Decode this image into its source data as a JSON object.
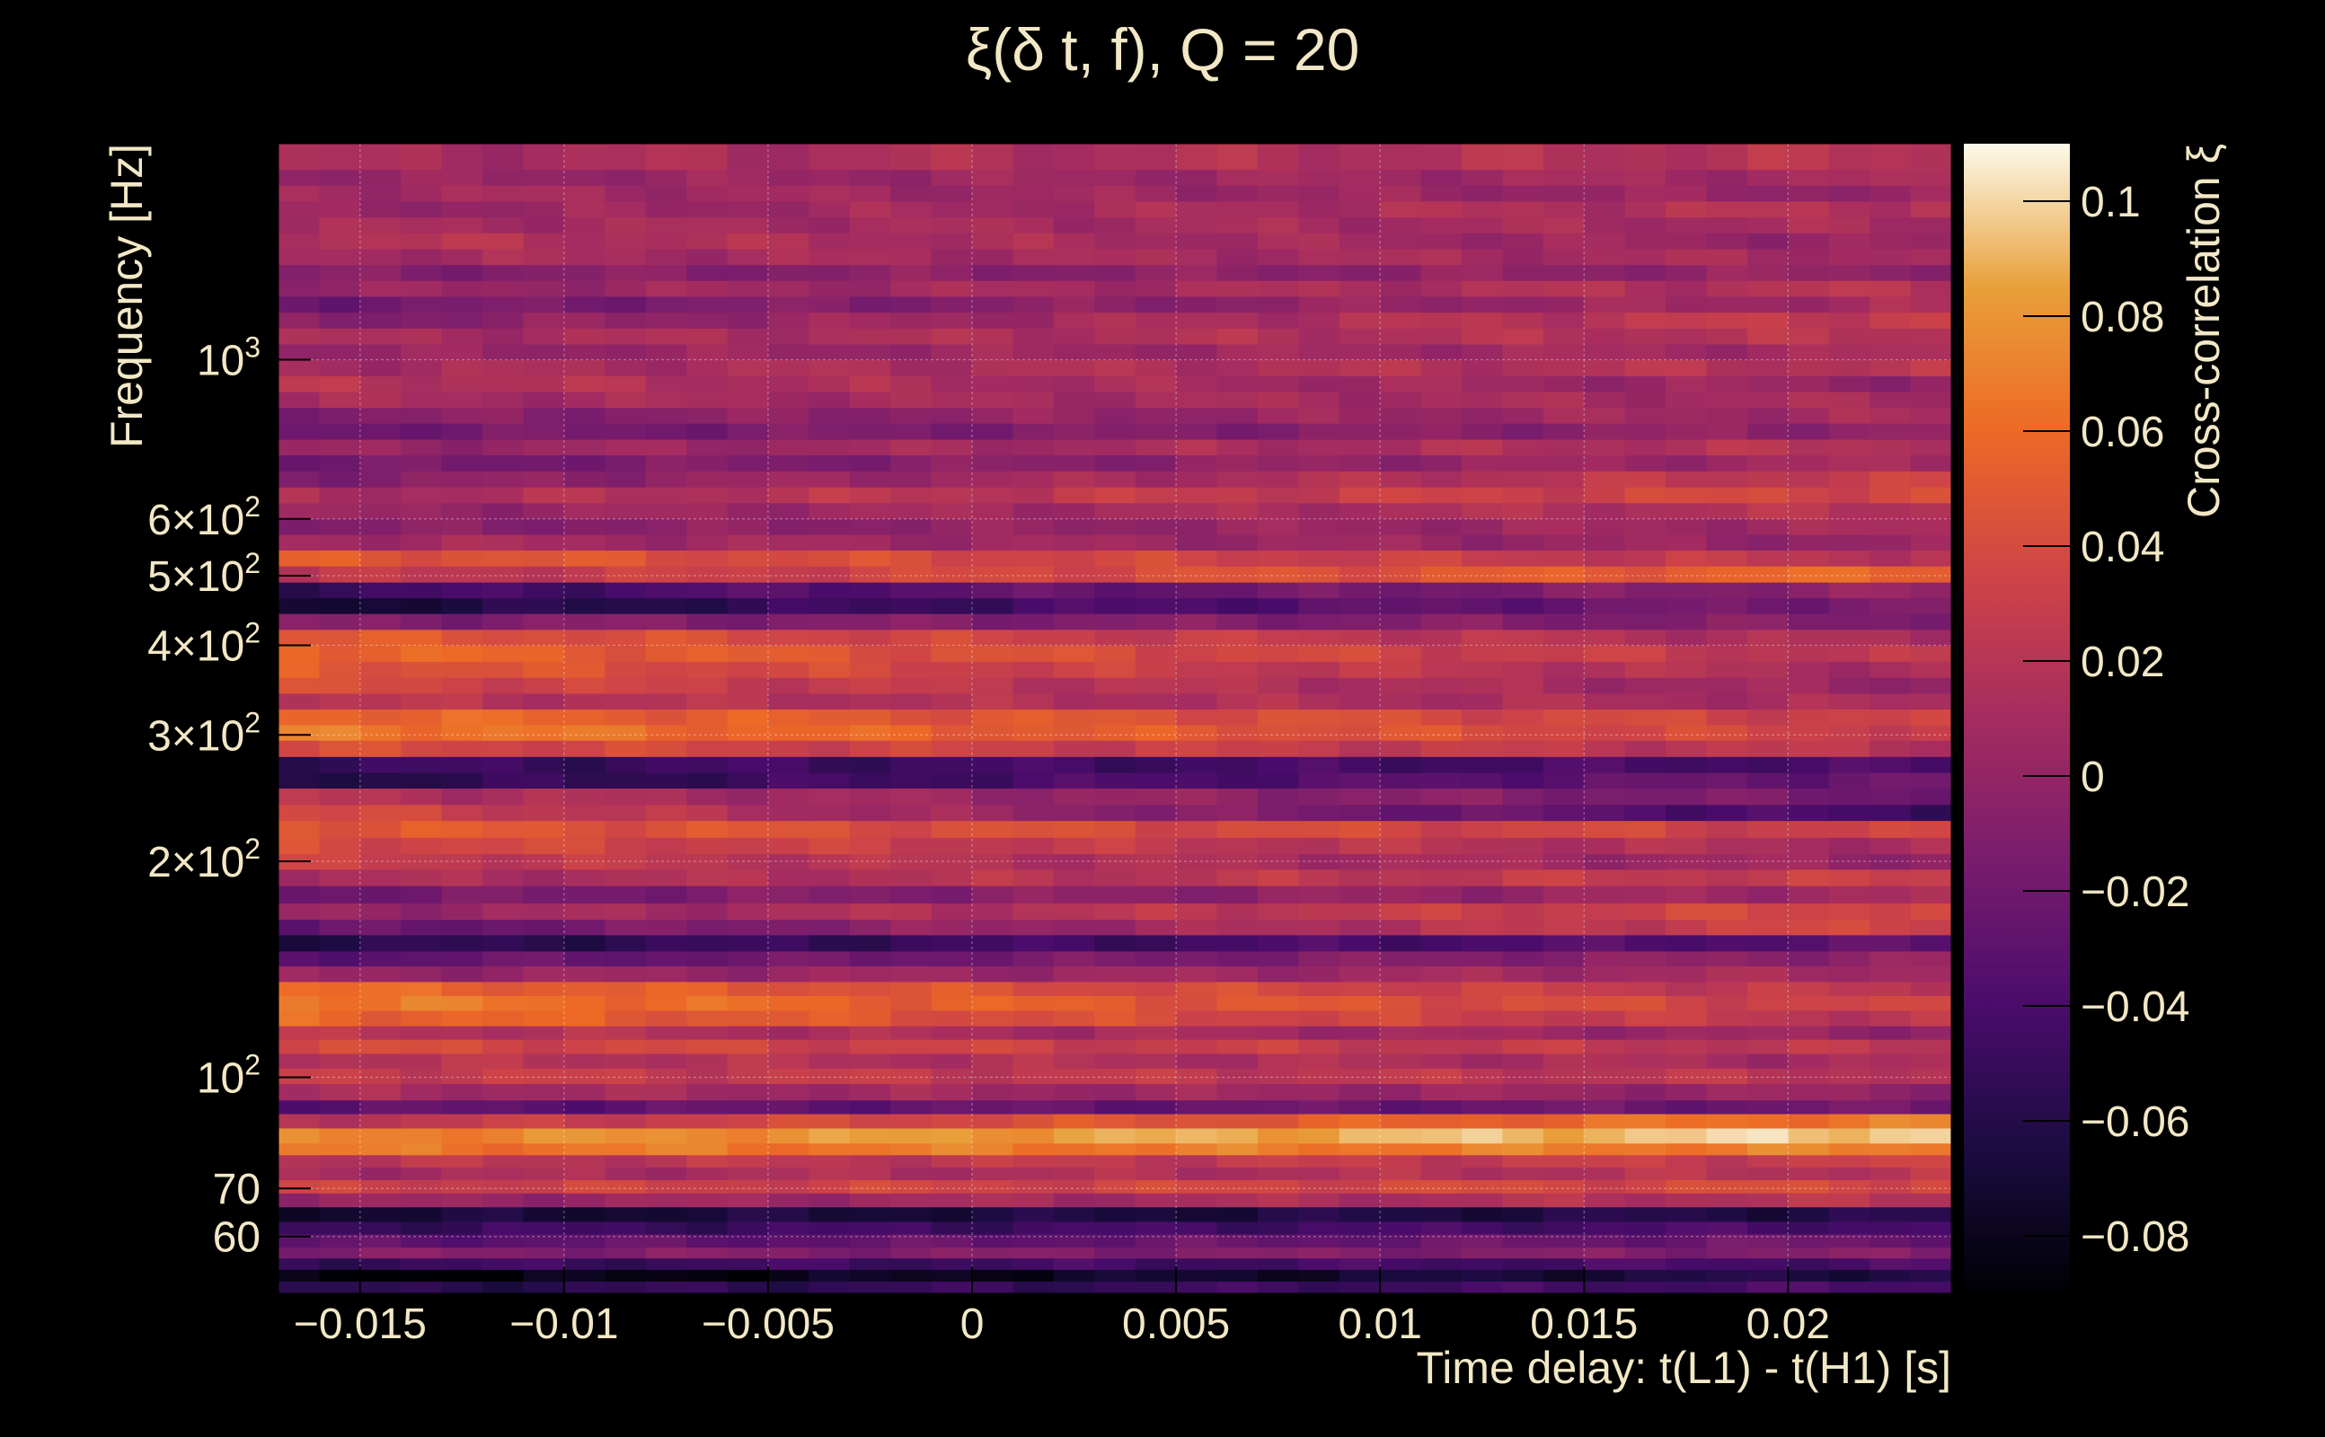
{
  "chart_data": {
    "type": "heatmap",
    "title": "ξ(δ t, f), Q = 20",
    "xlabel": "Time delay: t(L1) - t(H1) [s]",
    "ylabel": "Frequency [Hz]",
    "colorbar_label": "Cross-correlation ξ",
    "x_range": [
      -0.017,
      0.024
    ],
    "y_range": [
      50,
      2000
    ],
    "y_scale": "log",
    "z_range": [
      -0.09,
      0.11
    ],
    "grid": true,
    "colormap": "inferno",
    "x_ticks": [
      {
        "value": -0.015,
        "label": "−0.015"
      },
      {
        "value": -0.01,
        "label": "−0.01"
      },
      {
        "value": -0.005,
        "label": "−0.005"
      },
      {
        "value": 0,
        "label": "0"
      },
      {
        "value": 0.005,
        "label": "0.005"
      },
      {
        "value": 0.01,
        "label": "0.01"
      },
      {
        "value": 0.015,
        "label": "0.015"
      },
      {
        "value": 0.02,
        "label": "0.02"
      }
    ],
    "y_ticks": [
      {
        "value": 60,
        "base": "60",
        "exp": ""
      },
      {
        "value": 70,
        "base": "70",
        "exp": ""
      },
      {
        "value": 100,
        "base": "10",
        "exp": "2"
      },
      {
        "value": 200,
        "base": "2×10",
        "exp": "2"
      },
      {
        "value": 300,
        "base": "3×10",
        "exp": "2"
      },
      {
        "value": 400,
        "base": "4×10",
        "exp": "2"
      },
      {
        "value": 500,
        "base": "5×10",
        "exp": "2"
      },
      {
        "value": 600,
        "base": "6×10",
        "exp": "2"
      },
      {
        "value": 1000,
        "base": "10",
        "exp": "3"
      }
    ],
    "z_ticks": [
      {
        "value": 0.1,
        "label": "0.1"
      },
      {
        "value": 0.08,
        "label": "0.08"
      },
      {
        "value": 0.06,
        "label": "0.06"
      },
      {
        "value": 0.04,
        "label": "0.04"
      },
      {
        "value": 0.02,
        "label": "0.02"
      },
      {
        "value": 0,
        "label": "0"
      },
      {
        "value": -0.02,
        "label": "−0.02"
      },
      {
        "value": -0.04,
        "label": "−0.04"
      },
      {
        "value": -0.06,
        "label": "−0.06"
      },
      {
        "value": -0.08,
        "label": "−0.08"
      }
    ],
    "frequency_bands": [
      {
        "f_low": 50,
        "f_high": 52,
        "left": -0.06,
        "right": -0.04
      },
      {
        "f_low": 52,
        "f_high": 54,
        "left": -0.09,
        "right": -0.06
      },
      {
        "f_low": 54,
        "f_high": 56,
        "left": -0.05,
        "right": -0.04
      },
      {
        "f_low": 56,
        "f_high": 58,
        "left": -0.01,
        "right": -0.01
      },
      {
        "f_low": 58,
        "f_high": 60.5,
        "left": -0.03,
        "right": -0.02
      },
      {
        "f_low": 60.5,
        "f_high": 63,
        "left": -0.05,
        "right": -0.04
      },
      {
        "f_low": 63,
        "f_high": 66,
        "left": -0.07,
        "right": -0.06
      },
      {
        "f_low": 66,
        "f_high": 69,
        "left": 0.0,
        "right": 0.02
      },
      {
        "f_low": 69,
        "f_high": 72,
        "left": 0.03,
        "right": 0.04
      },
      {
        "f_low": 72,
        "f_high": 75,
        "left": 0.01,
        "right": 0.02
      },
      {
        "f_low": 75,
        "f_high": 78,
        "left": 0.02,
        "right": 0.03
      },
      {
        "f_low": 78,
        "f_high": 81,
        "left": 0.065,
        "right": 0.07
      },
      {
        "f_low": 81,
        "f_high": 85,
        "left": 0.07,
        "right": 0.1
      },
      {
        "f_low": 85,
        "f_high": 89,
        "left": 0.02,
        "right": 0.07
      },
      {
        "f_low": 89,
        "f_high": 93,
        "left": -0.03,
        "right": -0.02
      },
      {
        "f_low": 93,
        "f_high": 98,
        "left": 0.01,
        "right": 0.0
      },
      {
        "f_low": 98,
        "f_high": 103,
        "left": 0.03,
        "right": 0.02
      },
      {
        "f_low": 103,
        "f_high": 108,
        "left": 0.02,
        "right": 0.01
      },
      {
        "f_low": 108,
        "f_high": 113,
        "left": 0.04,
        "right": 0.02
      },
      {
        "f_low": 113,
        "f_high": 118,
        "left": 0.02,
        "right": 0.0
      },
      {
        "f_low": 118,
        "f_high": 124,
        "left": 0.06,
        "right": 0.02
      },
      {
        "f_low": 124,
        "f_high": 130,
        "left": 0.07,
        "right": 0.03
      },
      {
        "f_low": 130,
        "f_high": 136,
        "left": 0.06,
        "right": 0.02
      },
      {
        "f_low": 136,
        "f_high": 143,
        "left": 0.0,
        "right": 0.01
      },
      {
        "f_low": 143,
        "f_high": 150,
        "left": -0.03,
        "right": 0.0
      },
      {
        "f_low": 150,
        "f_high": 158,
        "left": -0.06,
        "right": -0.03
      },
      {
        "f_low": 158,
        "f_high": 166,
        "left": -0.03,
        "right": 0.04
      },
      {
        "f_low": 166,
        "f_high": 175,
        "left": 0.0,
        "right": 0.04
      },
      {
        "f_low": 175,
        "f_high": 185,
        "left": -0.02,
        "right": 0.01
      },
      {
        "f_low": 185,
        "f_high": 195,
        "left": 0.01,
        "right": 0.03
      },
      {
        "f_low": 195,
        "f_high": 205,
        "left": 0.03,
        "right": 0.0
      },
      {
        "f_low": 205,
        "f_high": 216,
        "left": 0.04,
        "right": 0.01
      },
      {
        "f_low": 216,
        "f_high": 228,
        "left": 0.05,
        "right": 0.03
      },
      {
        "f_low": 228,
        "f_high": 240,
        "left": 0.04,
        "right": -0.05
      },
      {
        "f_low": 240,
        "f_high": 253,
        "left": 0.02,
        "right": -0.02
      },
      {
        "f_low": 253,
        "f_high": 266,
        "left": -0.06,
        "right": -0.02
      },
      {
        "f_low": 266,
        "f_high": 280,
        "left": -0.05,
        "right": -0.04
      },
      {
        "f_low": 280,
        "f_high": 295,
        "left": 0.04,
        "right": 0.02
      },
      {
        "f_low": 295,
        "f_high": 310,
        "left": 0.07,
        "right": 0.03
      },
      {
        "f_low": 310,
        "f_high": 326,
        "left": 0.06,
        "right": 0.03
      },
      {
        "f_low": 326,
        "f_high": 343,
        "left": 0.02,
        "right": 0.01
      },
      {
        "f_low": 343,
        "f_high": 361,
        "left": 0.04,
        "right": 0.0
      },
      {
        "f_low": 361,
        "f_high": 380,
        "left": 0.05,
        "right": 0.01
      },
      {
        "f_low": 380,
        "f_high": 400,
        "left": 0.06,
        "right": 0.02
      },
      {
        "f_low": 400,
        "f_high": 421,
        "left": 0.05,
        "right": 0.01
      },
      {
        "f_low": 421,
        "f_high": 443,
        "left": -0.01,
        "right": -0.01
      },
      {
        "f_low": 443,
        "f_high": 466,
        "left": -0.07,
        "right": -0.01
      },
      {
        "f_low": 466,
        "f_high": 490,
        "left": -0.05,
        "right": 0.0
      },
      {
        "f_low": 490,
        "f_high": 516,
        "left": 0.02,
        "right": 0.06
      },
      {
        "f_low": 516,
        "f_high": 543,
        "left": 0.05,
        "right": 0.02
      },
      {
        "f_low": 543,
        "f_high": 571,
        "left": 0.01,
        "right": 0.0
      },
      {
        "f_low": 571,
        "f_high": 601,
        "left": -0.01,
        "right": 0.01
      },
      {
        "f_low": 601,
        "f_high": 632,
        "left": 0.0,
        "right": 0.02
      },
      {
        "f_low": 632,
        "f_high": 665,
        "left": 0.01,
        "right": 0.04
      },
      {
        "f_low": 665,
        "f_high": 700,
        "left": -0.01,
        "right": 0.03
      },
      {
        "f_low": 700,
        "f_high": 737,
        "left": -0.02,
        "right": 0.01
      },
      {
        "f_low": 737,
        "f_high": 775,
        "left": 0.0,
        "right": 0.02
      },
      {
        "f_low": 775,
        "f_high": 816,
        "left": -0.02,
        "right": 0.0
      },
      {
        "f_low": 816,
        "f_high": 858,
        "left": -0.01,
        "right": 0.01
      },
      {
        "f_low": 858,
        "f_high": 903,
        "left": 0.01,
        "right": 0.01
      },
      {
        "f_low": 903,
        "f_high": 950,
        "left": 0.02,
        "right": 0.0
      },
      {
        "f_low": 950,
        "f_high": 1000,
        "left": 0.01,
        "right": 0.02
      },
      {
        "f_low": 1000,
        "f_high": 1052,
        "left": 0.0,
        "right": 0.01
      },
      {
        "f_low": 1052,
        "f_high": 1107,
        "left": 0.01,
        "right": 0.02
      },
      {
        "f_low": 1107,
        "f_high": 1165,
        "left": -0.01,
        "right": 0.03
      },
      {
        "f_low": 1165,
        "f_high": 1226,
        "left": -0.02,
        "right": 0.01
      },
      {
        "f_low": 1226,
        "f_high": 1290,
        "left": 0.0,
        "right": 0.02
      },
      {
        "f_low": 1290,
        "f_high": 1357,
        "left": -0.01,
        "right": 0.0
      },
      {
        "f_low": 1357,
        "f_high": 1428,
        "left": 0.01,
        "right": 0.01
      },
      {
        "f_low": 1428,
        "f_high": 1503,
        "left": 0.02,
        "right": 0.0
      },
      {
        "f_low": 1503,
        "f_high": 1581,
        "left": 0.01,
        "right": 0.01
      },
      {
        "f_low": 1581,
        "f_high": 1664,
        "left": 0.0,
        "right": 0.02
      },
      {
        "f_low": 1664,
        "f_high": 1751,
        "left": 0.01,
        "right": 0.0
      },
      {
        "f_low": 1751,
        "f_high": 1842,
        "left": 0.0,
        "right": 0.01
      },
      {
        "f_low": 1842,
        "f_high": 2000,
        "left": 0.01,
        "right": 0.02
      }
    ]
  }
}
